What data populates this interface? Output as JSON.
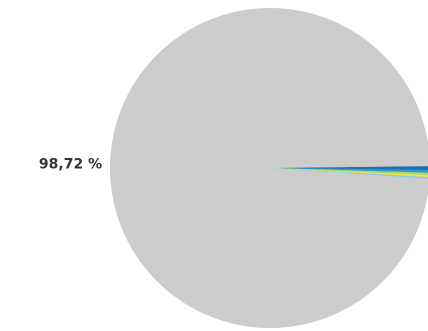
{
  "chart_data": {
    "type": "pie",
    "title": "",
    "slices": [
      {
        "value": 98.72,
        "label": "98,72 %",
        "color": "#cccccc"
      },
      {
        "value": 0.4,
        "label": "",
        "color": "#1f6fb2"
      },
      {
        "value": 0.28,
        "label": "",
        "color": "#2e9ad0"
      },
      {
        "value": 0.24,
        "label": "",
        "color": "#a6d96a"
      },
      {
        "value": 0.2,
        "label": "",
        "color": "#f4e04d"
      },
      {
        "value": 0.16,
        "label": "",
        "color": "#8cc8e8"
      }
    ],
    "legend": "none"
  }
}
